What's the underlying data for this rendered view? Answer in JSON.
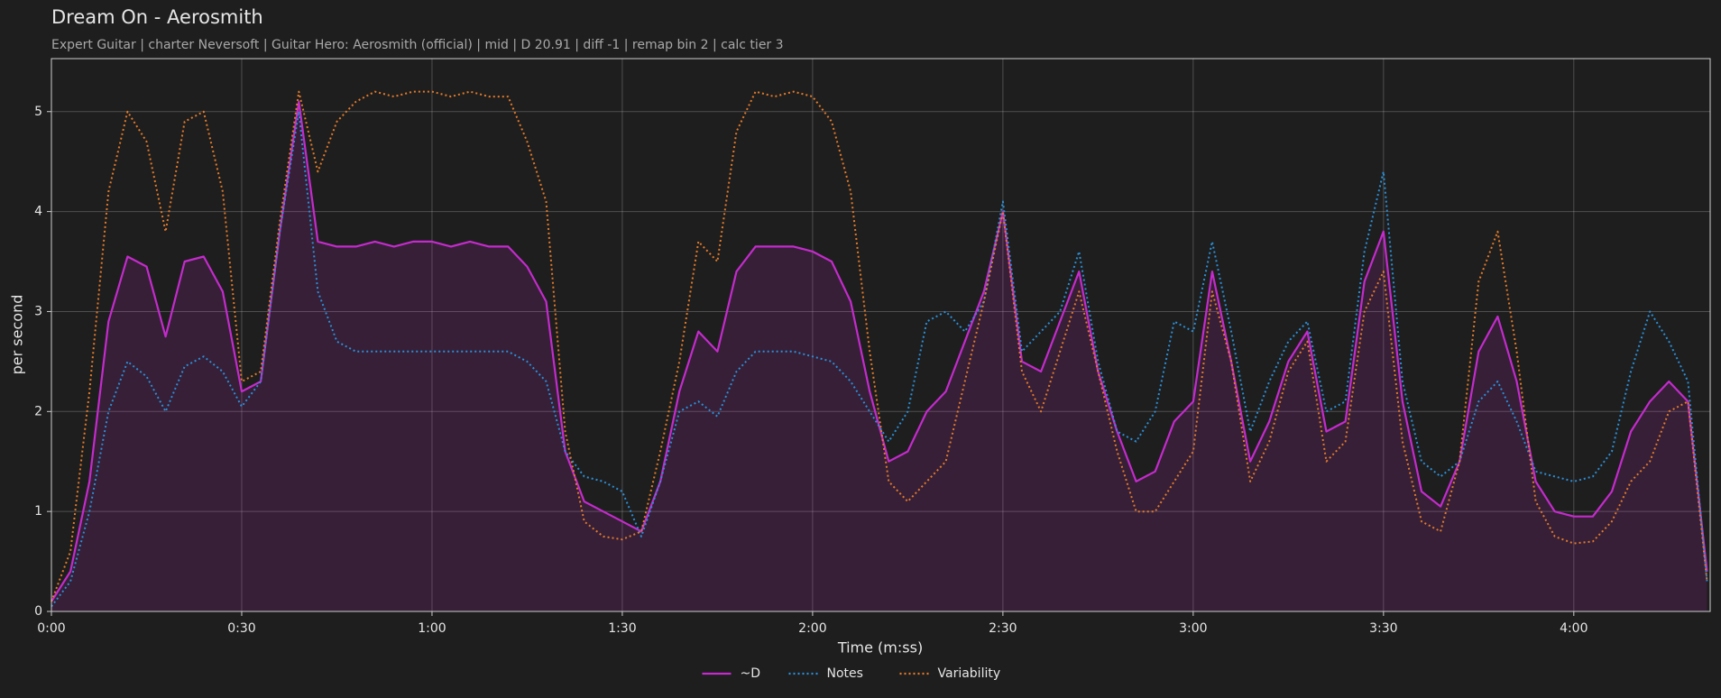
{
  "chart_data": {
    "type": "line",
    "title": "Dream On - Aerosmith",
    "subtitle": "Expert Guitar  |  charter Neversoft  |  Guitar Hero: Aerosmith (official)  |  mid  |  D 20.91  |  diff -1  |  remap bin 2  |  calc tier 3",
    "x_label": "Time (m:ss)",
    "y_label": "per second",
    "x": [
      0,
      3,
      6,
      9,
      12,
      15,
      18,
      21,
      24,
      27,
      30,
      33,
      36,
      39,
      42,
      45,
      48,
      51,
      54,
      57,
      60,
      63,
      66,
      69,
      72,
      75,
      78,
      81,
      84,
      87,
      90,
      93,
      96,
      99,
      102,
      105,
      108,
      111,
      114,
      117,
      120,
      123,
      126,
      129,
      132,
      135,
      138,
      141,
      144,
      147,
      150,
      153,
      156,
      159,
      162,
      165,
      168,
      171,
      174,
      177,
      180,
      183,
      186,
      189,
      192,
      195,
      198,
      201,
      204,
      207,
      210,
      213,
      216,
      219,
      222,
      225,
      228,
      231,
      234,
      237,
      240,
      243,
      246,
      249,
      252,
      255,
      258,
      261
    ],
    "series": [
      {
        "name": "~D",
        "color": "#c42bcc",
        "linestyle": "solid",
        "fill": true,
        "values": [
          0.1,
          0.4,
          1.3,
          2.9,
          3.55,
          3.45,
          2.75,
          3.5,
          3.55,
          3.2,
          2.2,
          2.3,
          3.8,
          5.1,
          3.7,
          3.65,
          3.65,
          3.7,
          3.65,
          3.7,
          3.7,
          3.65,
          3.7,
          3.65,
          3.65,
          3.45,
          3.1,
          1.6,
          1.1,
          1.0,
          0.9,
          0.8,
          1.3,
          2.2,
          2.8,
          2.6,
          3.4,
          3.65,
          3.65,
          3.65,
          3.6,
          3.5,
          3.1,
          2.2,
          1.5,
          1.6,
          2.0,
          2.2,
          2.7,
          3.2,
          4.0,
          2.5,
          2.4,
          2.9,
          3.4,
          2.4,
          1.8,
          1.3,
          1.4,
          1.9,
          2.1,
          3.4,
          2.5,
          1.5,
          1.9,
          2.5,
          2.8,
          1.8,
          1.9,
          3.3,
          3.8,
          2.1,
          1.2,
          1.05,
          1.5,
          2.6,
          2.95,
          2.3,
          1.3,
          1.0,
          0.95,
          0.95,
          1.2,
          1.8,
          2.1,
          2.3,
          2.1,
          0.4
        ]
      },
      {
        "name": "Notes",
        "color": "#2b8fd6",
        "linestyle": "dotted",
        "fill": false,
        "values": [
          0.05,
          0.3,
          1.0,
          2.0,
          2.5,
          2.35,
          2.0,
          2.45,
          2.55,
          2.4,
          2.05,
          2.3,
          3.8,
          5.0,
          3.2,
          2.7,
          2.6,
          2.6,
          2.6,
          2.6,
          2.6,
          2.6,
          2.6,
          2.6,
          2.6,
          2.5,
          2.3,
          1.6,
          1.35,
          1.3,
          1.2,
          0.75,
          1.3,
          2.0,
          2.1,
          1.95,
          2.4,
          2.6,
          2.6,
          2.6,
          2.55,
          2.5,
          2.3,
          2.0,
          1.7,
          2.0,
          2.9,
          3.0,
          2.8,
          3.1,
          4.1,
          2.6,
          2.8,
          3.0,
          3.6,
          2.5,
          1.8,
          1.7,
          2.0,
          2.9,
          2.8,
          3.7,
          2.8,
          1.8,
          2.3,
          2.7,
          2.9,
          2.0,
          2.1,
          3.6,
          4.4,
          2.3,
          1.5,
          1.35,
          1.5,
          2.1,
          2.3,
          1.9,
          1.4,
          1.35,
          1.3,
          1.35,
          1.6,
          2.4,
          3.0,
          2.7,
          2.3,
          0.3
        ]
      },
      {
        "name": "Variability",
        "color": "#e27a2a",
        "linestyle": "dotted",
        "fill": false,
        "values": [
          0.1,
          0.6,
          2.2,
          4.2,
          5.0,
          4.7,
          3.8,
          4.9,
          5.0,
          4.2,
          2.3,
          2.4,
          3.9,
          5.2,
          4.4,
          4.9,
          5.1,
          5.2,
          5.15,
          5.2,
          5.2,
          5.15,
          5.2,
          5.15,
          5.15,
          4.7,
          4.1,
          1.8,
          0.9,
          0.75,
          0.72,
          0.8,
          1.6,
          2.5,
          3.7,
          3.5,
          4.8,
          5.2,
          5.15,
          5.2,
          5.15,
          4.9,
          4.2,
          2.6,
          1.3,
          1.1,
          1.3,
          1.5,
          2.3,
          3.1,
          4.0,
          2.4,
          2.0,
          2.6,
          3.2,
          2.4,
          1.6,
          1.0,
          1.0,
          1.3,
          1.6,
          3.2,
          2.5,
          1.3,
          1.7,
          2.4,
          2.7,
          1.5,
          1.7,
          3.0,
          3.4,
          1.7,
          0.9,
          0.8,
          1.5,
          3.3,
          3.8,
          2.6,
          1.1,
          0.75,
          0.68,
          0.7,
          0.9,
          1.3,
          1.5,
          2.0,
          2.1,
          0.3
        ]
      }
    ],
    "xlim": [
      0,
      261.5
    ],
    "xticks": [
      {
        "value": 0,
        "label": "0:00"
      },
      {
        "value": 30,
        "label": "0:30"
      },
      {
        "value": 60,
        "label": "1:00"
      },
      {
        "value": 90,
        "label": "1:30"
      },
      {
        "value": 120,
        "label": "2:00"
      },
      {
        "value": 150,
        "label": "2:30"
      },
      {
        "value": 180,
        "label": "3:00"
      },
      {
        "value": 210,
        "label": "3:30"
      },
      {
        "value": 240,
        "label": "4:00"
      }
    ],
    "ylim": [
      0,
      5.53
    ],
    "yticks": [
      0,
      1,
      2,
      3,
      4,
      5
    ],
    "grid": true,
    "legend": "bottom"
  }
}
